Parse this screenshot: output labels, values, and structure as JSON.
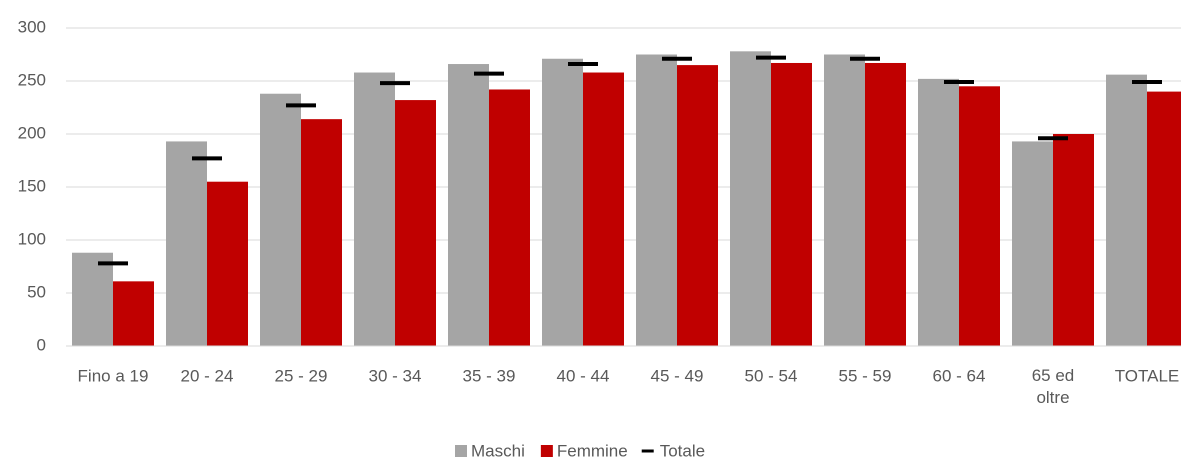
{
  "chart_data": {
    "type": "bar",
    "categories": [
      "Fino a 19",
      "20 - 24",
      "25 - 29",
      "30 - 34",
      "35 - 39",
      "40 - 44",
      "45 - 49",
      "50 - 54",
      "55 - 59",
      "60 - 64",
      "65 ed\noltre",
      "TOTALE"
    ],
    "series": [
      {
        "name": "Maschi",
        "color": "#a5a5a5",
        "values": [
          88,
          193,
          238,
          258,
          266,
          271,
          275,
          278,
          275,
          252,
          193,
          256
        ]
      },
      {
        "name": "Femmine",
        "color": "#c00000",
        "values": [
          61,
          155,
          214,
          232,
          242,
          258,
          265,
          267,
          267,
          245,
          200,
          240
        ]
      },
      {
        "name": "Totale",
        "color": "#000000",
        "marker": "dash",
        "values": [
          78,
          177,
          227,
          248,
          257,
          266,
          271,
          272,
          271,
          249,
          196,
          249
        ]
      }
    ],
    "ylim": [
      0,
      300
    ],
    "yticks": [
      0,
      50,
      100,
      150,
      200,
      250,
      300
    ],
    "grid": true,
    "legend": "bottom"
  }
}
